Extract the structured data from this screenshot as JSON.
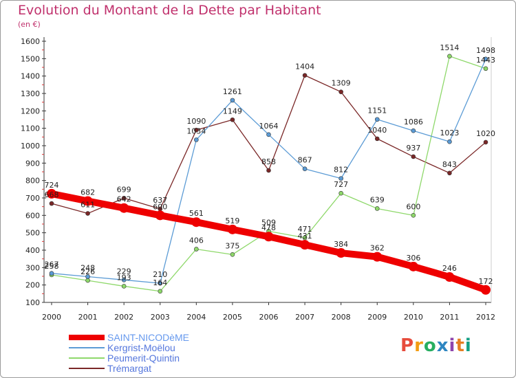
{
  "header": {
    "title": "Evolution du Montant de la Dette par Habitant",
    "unit": "(en €)"
  },
  "logo": {
    "text": "Proxiti",
    "colors": [
      "#e74c3c",
      "#f39c12",
      "#27ae60",
      "#2e86c1",
      "#8e44ad",
      "#e67e22",
      "#16a085"
    ]
  },
  "chart_data": {
    "type": "line",
    "title": "Evolution du Montant de la Dette par Habitant",
    "subtitle": "(en €)",
    "xlabel": "",
    "ylabel": "",
    "ylim": [
      100,
      1600
    ],
    "yticks": [
      100,
      200,
      300,
      400,
      500,
      600,
      700,
      800,
      900,
      1000,
      1100,
      1200,
      1300,
      1400,
      1500,
      1600
    ],
    "grid": false,
    "legend": "bottom-left",
    "x": [
      "2000",
      "2001",
      "2002",
      "2003",
      "2004",
      "2005",
      "2006",
      "2007",
      "2008",
      "2009",
      "2010",
      "2011",
      "2012"
    ],
    "series": [
      {
        "name": "SAINT-NICODèME",
        "color": "#ee0000",
        "values": [
          724,
          682,
          642,
          600,
          561,
          519,
          478,
          431,
          384,
          362,
          306,
          246,
          172
        ]
      },
      {
        "name": "Kergrist-Moëlou",
        "color": "#5b9bd5",
        "values": [
          267,
          248,
          229,
          210,
          1034,
          1261,
          1064,
          867,
          812,
          1151,
          1086,
          1023,
          1498
        ]
      },
      {
        "name": "Peumerit-Quintin",
        "color": "#8ed86a",
        "values": [
          258,
          226,
          193,
          164,
          406,
          375,
          509,
          471,
          727,
          639,
          600,
          1514,
          1443
        ]
      },
      {
        "name": "Trémargat",
        "color": "#7a2727",
        "values": [
          668,
          611,
          699,
          637,
          1090,
          1149,
          858,
          1404,
          1309,
          1040,
          937,
          843,
          1020
        ]
      }
    ]
  }
}
